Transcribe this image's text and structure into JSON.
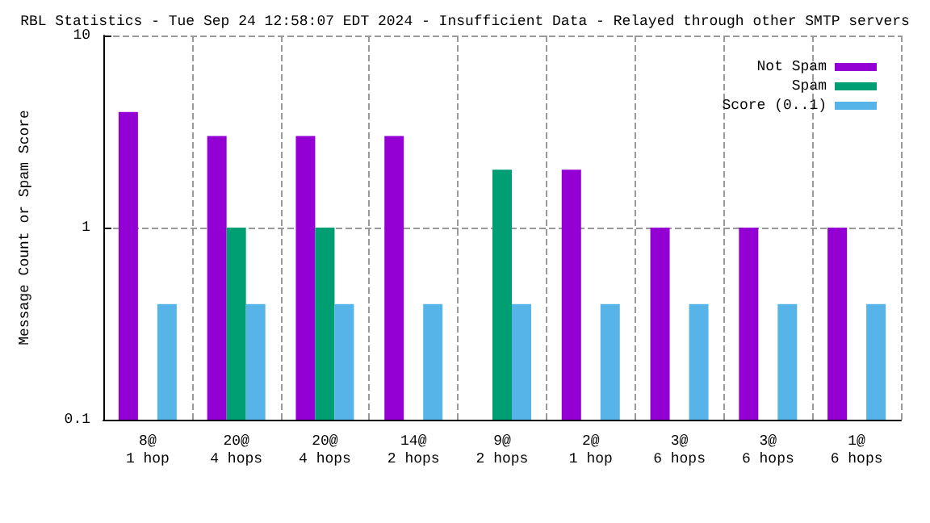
{
  "chart_data": {
    "type": "bar",
    "title": "RBL Statistics - Tue Sep 24 12:58:07 EDT 2024 - Insufficient Data - Relayed through other SMTP servers",
    "ylabel": "Message Count or Spam Score",
    "categories": [
      "8@\n1 hop",
      "20@\n4 hops",
      "20@\n4 hops",
      "14@\n2 hops",
      "9@\n2 hops",
      "2@\n1 hop",
      "3@\n6 hops",
      "3@\n6 hops",
      "1@\n6 hops"
    ],
    "series": [
      {
        "name": "Not Spam",
        "color": "#9400d3",
        "values": [
          4,
          3,
          3,
          3,
          null,
          2,
          1,
          1,
          1
        ]
      },
      {
        "name": "Spam",
        "color": "#009e73",
        "values": [
          null,
          1,
          1,
          null,
          2,
          null,
          null,
          null,
          null
        ]
      },
      {
        "name": "Score (0..1)",
        "color": "#56b4e9",
        "values": [
          0.4,
          0.4,
          0.4,
          0.4,
          0.4,
          0.4,
          0.4,
          0.4,
          0.4
        ]
      }
    ],
    "log": "y",
    "ylim": [
      0.1,
      10
    ],
    "yticks": [
      0.1,
      1,
      10
    ],
    "grid": true,
    "legend": "top right"
  }
}
